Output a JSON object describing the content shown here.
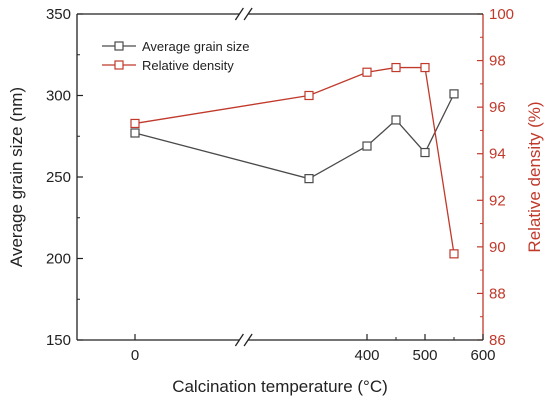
{
  "chart_data": {
    "type": "line",
    "xlabel": "Calcination temperature (°C)",
    "ylabel": "Average grain size (nm)",
    "y2label": "Relative density (%)",
    "x_ticks": [
      0,
      400,
      500,
      600
    ],
    "x_tick_labels": [
      "0",
      "400",
      "500",
      "600"
    ],
    "x_axis_break": "between 0 and 400",
    "xlim": [
      -100,
      600
    ],
    "ylim": [
      150,
      350
    ],
    "y_ticks": [
      150,
      200,
      250,
      300,
      350
    ],
    "y_tick_labels": [
      "150",
      "200",
      "250",
      "300",
      "350"
    ],
    "y2lim": [
      86,
      100
    ],
    "y2_ticks": [
      86,
      88,
      90,
      92,
      94,
      96,
      98,
      100
    ],
    "y2_tick_labels": [
      "86",
      "88",
      "90",
      "92",
      "94",
      "96",
      "98",
      "100"
    ],
    "legend_position": "top-left",
    "grid": false,
    "series": [
      {
        "name": "Average grain size",
        "axis": "left",
        "color": "#4a4a4a",
        "marker": "open-square",
        "x": [
          0,
          300,
          400,
          450,
          500,
          550
        ],
        "values": [
          277,
          249,
          269,
          285,
          265,
          301
        ]
      },
      {
        "name": "Relative density",
        "axis": "right",
        "color": "#c0392b",
        "marker": "open-square",
        "x": [
          0,
          300,
          400,
          450,
          500,
          550
        ],
        "values": [
          95.3,
          96.5,
          97.5,
          97.7,
          97.7,
          89.7
        ]
      }
    ]
  }
}
